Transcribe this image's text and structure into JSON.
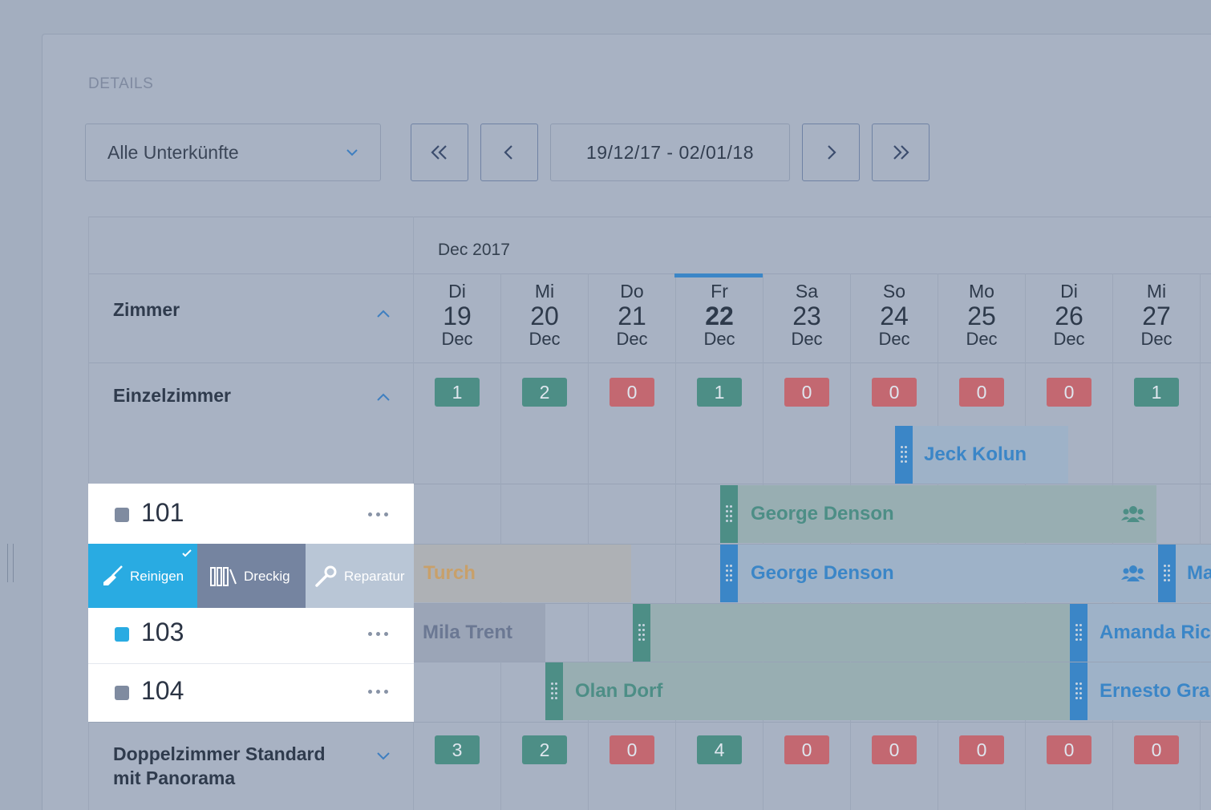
{
  "header": {
    "section_title": "DETAILS"
  },
  "filter": {
    "selected": "Alle Unterkünfte"
  },
  "nav": {
    "date_range": "19/12/17 - 02/01/18"
  },
  "calendar": {
    "month": "Dec 2017",
    "days": [
      {
        "dn": "Di",
        "num": "19",
        "mo": "Dec"
      },
      {
        "dn": "Mi",
        "num": "20",
        "mo": "Dec"
      },
      {
        "dn": "Do",
        "num": "21",
        "mo": "Dec"
      },
      {
        "dn": "Fr",
        "num": "22",
        "mo": "Dec"
      },
      {
        "dn": "Sa",
        "num": "23",
        "mo": "Dec"
      },
      {
        "dn": "So",
        "num": "24",
        "mo": "Dec"
      },
      {
        "dn": "Mo",
        "num": "25",
        "mo": "Dec"
      },
      {
        "dn": "Di",
        "num": "26",
        "mo": "Dec"
      },
      {
        "dn": "Mi",
        "num": "27",
        "mo": "Dec"
      }
    ],
    "today_index": 3
  },
  "groups": {
    "rooms_header": "Zimmer",
    "single": "Einzelzimmer",
    "double": "Doppelzimmer Standard mit Panorama"
  },
  "availability": {
    "single": [
      "1",
      "2",
      "0",
      "1",
      "0",
      "0",
      "0",
      "0",
      "1"
    ],
    "double": [
      "3",
      "2",
      "0",
      "4",
      "0",
      "0",
      "0",
      "0",
      "0"
    ]
  },
  "rooms": {
    "r101": "101",
    "r103": "103",
    "r104": "104"
  },
  "actions": {
    "clean": "Reinigen",
    "dirty": "Dreckig",
    "repair": "Reparatur"
  },
  "bookings": {
    "jeck": "Jeck Kolun",
    "george1": "George Denson",
    "george2": "George Denson",
    "turch": "Turch",
    "ma": "Ma",
    "mila": "Mila Trent",
    "amanda": "Amanda Ric",
    "olan": "Olan Dorf",
    "ernesto": "Ernesto Gra"
  },
  "colors": {
    "accent": "#29abe2",
    "green": "#4d8e86",
    "red": "#c36871",
    "booking_blue": "#3b86c7"
  }
}
